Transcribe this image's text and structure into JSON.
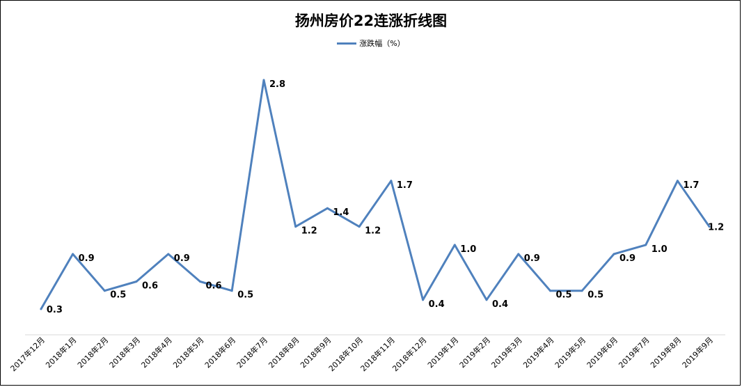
{
  "chart_data": {
    "type": "line",
    "title": "扬州房价22连涨折线图",
    "categories": [
      "2017年12月",
      "2018年1月",
      "2018年2月",
      "2018年3月",
      "2018年4月",
      "2018年5月",
      "2018年6月",
      "2018年7月",
      "2018年8月",
      "2018年9月",
      "2018年10月",
      "2018年11月",
      "2018年12月",
      "2019年1月",
      "2019年2月",
      "2019年3月",
      "2019年4月",
      "2019年5月",
      "2019年6月",
      "2019年7月",
      "2019年8月",
      "2019年9月"
    ],
    "series": [
      {
        "name": "涨跌幅（%）",
        "color": "#4F81BD",
        "values": [
          0.3,
          0.9,
          0.5,
          0.6,
          0.9,
          0.6,
          0.5,
          2.8,
          1.2,
          1.4,
          1.2,
          1.7,
          0.4,
          1.0,
          0.4,
          0.9,
          0.5,
          0.5,
          0.9,
          1.0,
          1.7,
          1.2
        ],
        "labels": [
          "0.3",
          "0.9",
          "0.5",
          "0.6",
          "0.9",
          "0.6",
          "0.5",
          "2.8",
          "1.2",
          "1.4",
          "1.2",
          "1.7",
          "0.4",
          "1.0",
          "0.4",
          "0.9",
          "0.5",
          "0.5",
          "0.9",
          "1.0",
          "1.7",
          "1.2"
        ]
      }
    ],
    "legend_position": "top",
    "grid": false,
    "ylim": [
      0.1,
      2.85
    ],
    "xlabel": "",
    "ylabel": ""
  }
}
